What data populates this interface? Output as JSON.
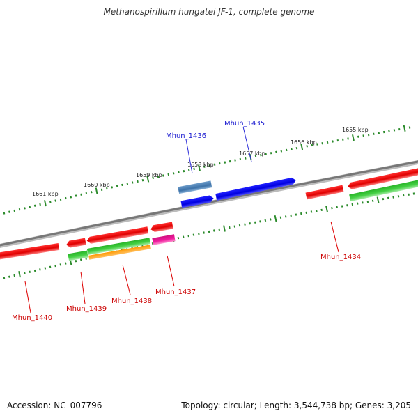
{
  "title": "Methanospirillum hungatei JF-1, complete genome",
  "footer": {
    "accession": "Accession: NC_007796",
    "summary": "Topology: circular; Length: 3,544,738 bp; Genes: 3,205"
  },
  "kbp_labels": [
    "1661 kbp",
    "1660 kbp",
    "1659 kbp",
    "1658 kbp",
    "1657 kbp",
    "1656 kbp",
    "1655 kbp"
  ],
  "gene_labels": [
    "Mhun_1436",
    "Mhun_1435",
    "Mhun_1434",
    "Mhun_1440",
    "Mhun_1439",
    "Mhun_1438",
    "Mhun_1437"
  ],
  "colors": {
    "backbone": "#7a7a7a",
    "tick": "#2a8a2a",
    "forward_label": "#1a1ad0",
    "reverse_label": "#cc0000",
    "red_gene": "#ee0000",
    "blue_gene": "#0000ee",
    "steelblue_gene": "#4682b4",
    "green_gene": "#3cc83c",
    "orange_gene": "#ff9900",
    "pink_gene": "#e8189a"
  }
}
